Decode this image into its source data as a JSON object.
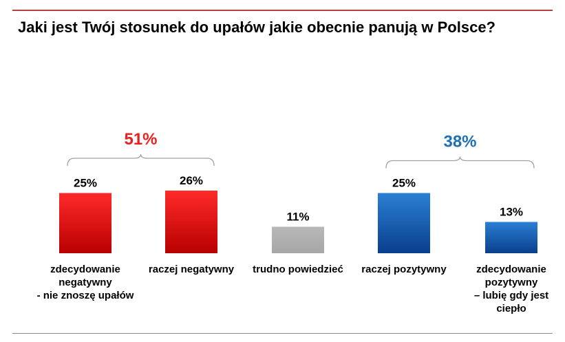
{
  "chart_data": {
    "type": "bar",
    "title": "Jaki jest Twój stosunek do upałów jakie obecnie panują w Polsce?",
    "categories": [
      [
        "zdecydowanie",
        "negatywny",
        "- nie znoszę upałów"
      ],
      [
        "raczej negatywny"
      ],
      [
        "trudno powiedzieć"
      ],
      [
        "raczej pozytywny"
      ],
      [
        "zdecydowanie",
        "pozytywny",
        "– lubię gdy jest",
        "ciepło"
      ]
    ],
    "values": [
      25,
      26,
      11,
      25,
      13
    ],
    "value_labels": [
      "25%",
      "26%",
      "11%",
      "25%",
      "13%"
    ],
    "ylim": [
      0,
      30
    ],
    "groups": [
      {
        "label": "51%",
        "from": 0,
        "to": 1,
        "color": "#e8201e"
      },
      {
        "label": "38%",
        "from": 3,
        "to": 4,
        "color": "#1f6fb5"
      }
    ],
    "colors": {
      "negative": [
        "#ff2a2a",
        "#b80000"
      ],
      "neutral": [
        "#b8b8b8",
        "#a6a6a6"
      ],
      "positive": [
        "#2a7fd4",
        "#0a3f8c"
      ]
    },
    "bar_color_keys": [
      "negative",
      "negative",
      "neutral",
      "positive",
      "positive"
    ],
    "grid": false,
    "legend": "none"
  }
}
